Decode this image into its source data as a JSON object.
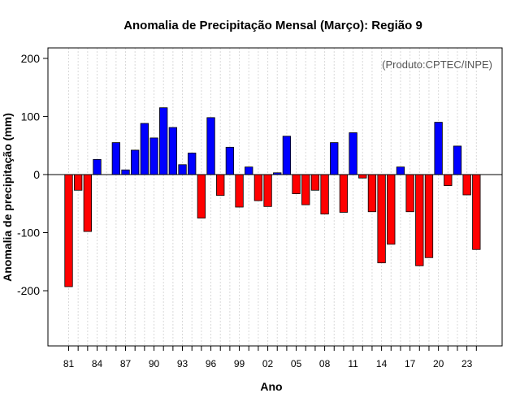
{
  "chart_data": {
    "type": "bar",
    "title": "Anomalia de Precipitação Mensal (Março): Região 9",
    "xlabel": "Ano",
    "ylabel": "Anomalia de precipitação (mm)",
    "annotation": "(Produto:CPTEC/INPE)",
    "ylim": [
      -295,
      218
    ],
    "yticks": [
      200,
      100,
      0,
      -100,
      -200
    ],
    "xtick_labels": [
      "81",
      "84",
      "87",
      "90",
      "93",
      "96",
      "99",
      "02",
      "05",
      "08",
      "11",
      "14",
      "17",
      "20",
      "23"
    ],
    "grid": true,
    "positive_color": "#0000ff",
    "negative_color": "#ff0000",
    "categories": [
      "1981",
      "1982",
      "1983",
      "1984",
      "1985",
      "1986",
      "1987",
      "1988",
      "1989",
      "1990",
      "1991",
      "1992",
      "1993",
      "1994",
      "1995",
      "1996",
      "1997",
      "1998",
      "1999",
      "2000",
      "2001",
      "2002",
      "2003",
      "2004",
      "2005",
      "2006",
      "2007",
      "2008",
      "2009",
      "2010",
      "2011",
      "2012",
      "2013",
      "2014",
      "2015",
      "2016",
      "2017",
      "2018",
      "2019",
      "2020",
      "2021",
      "2022",
      "2023",
      "2024"
    ],
    "values": [
      -193,
      -27,
      -98,
      26,
      0,
      55,
      8,
      42,
      88,
      63,
      115,
      81,
      17,
      37,
      -75,
      98,
      -36,
      47,
      -56,
      13,
      -45,
      -55,
      3,
      66,
      -33,
      -52,
      -27,
      -68,
      55,
      -65,
      72,
      -6,
      -64,
      -152,
      -120,
      13,
      -64,
      -157,
      -143,
      90,
      -19,
      49,
      -35,
      -129
    ]
  }
}
